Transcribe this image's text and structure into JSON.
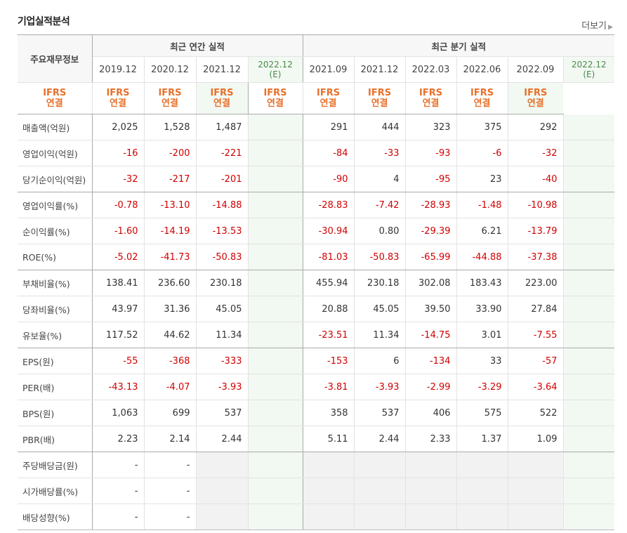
{
  "title": "기업실적분석",
  "more": "더보기",
  "row_label_header": "주요재무정보",
  "annual_header": "최근 연간 실적",
  "quarter_header": "최근 분기 실적",
  "periods": [
    {
      "label": "2019.12",
      "est": false
    },
    {
      "label": "2020.12",
      "est": false
    },
    {
      "label": "2021.12",
      "est": false
    },
    {
      "label": "2022.12",
      "sub": "(E)",
      "est": true
    },
    {
      "label": "2021.09",
      "est": false
    },
    {
      "label": "2021.12",
      "est": false
    },
    {
      "label": "2022.03",
      "est": false
    },
    {
      "label": "2022.06",
      "est": false
    },
    {
      "label": "2022.09",
      "est": false
    },
    {
      "label": "2022.12",
      "sub": "(E)",
      "est": true
    }
  ],
  "ifrs_line1": "IFRS",
  "ifrs_line2": "연결",
  "rows": [
    {
      "label": "매출액(억원)",
      "values": [
        "2,025",
        "1,528",
        "1,487",
        "",
        "291",
        "444",
        "323",
        "375",
        "292",
        ""
      ]
    },
    {
      "label": "영업이익(억원)",
      "values": [
        "-16",
        "-200",
        "-221",
        "",
        "-84",
        "-33",
        "-93",
        "-6",
        "-32",
        ""
      ]
    },
    {
      "label": "당기순이익(억원)",
      "values": [
        "-32",
        "-217",
        "-201",
        "",
        "-90",
        "4",
        "-95",
        "23",
        "-40",
        ""
      ],
      "sep": true
    },
    {
      "label": "영업이익률(%)",
      "values": [
        "-0.78",
        "-13.10",
        "-14.88",
        "",
        "-28.83",
        "-7.42",
        "-28.93",
        "-1.48",
        "-10.98",
        ""
      ]
    },
    {
      "label": "순이익률(%)",
      "values": [
        "-1.60",
        "-14.19",
        "-13.53",
        "",
        "-30.94",
        "0.80",
        "-29.39",
        "6.21",
        "-13.79",
        ""
      ]
    },
    {
      "label": "ROE(%)",
      "values": [
        "-5.02",
        "-41.73",
        "-50.83",
        "",
        "-81.03",
        "-50.83",
        "-65.99",
        "-44.88",
        "-37.38",
        ""
      ],
      "sep": true
    },
    {
      "label": "부채비율(%)",
      "values": [
        "138.41",
        "236.60",
        "230.18",
        "",
        "455.94",
        "230.18",
        "302.08",
        "183.43",
        "223.00",
        ""
      ]
    },
    {
      "label": "당좌비율(%)",
      "values": [
        "43.97",
        "31.36",
        "45.05",
        "",
        "20.88",
        "45.05",
        "39.50",
        "33.90",
        "27.84",
        ""
      ]
    },
    {
      "label": "유보율(%)",
      "values": [
        "117.52",
        "44.62",
        "11.34",
        "",
        "-23.51",
        "11.34",
        "-14.75",
        "3.01",
        "-7.55",
        ""
      ],
      "sep": true
    },
    {
      "label": "EPS(원)",
      "values": [
        "-55",
        "-368",
        "-333",
        "",
        "-153",
        "6",
        "-134",
        "33",
        "-57",
        ""
      ]
    },
    {
      "label": "PER(배)",
      "values": [
        "-43.13",
        "-4.07",
        "-3.93",
        "",
        "-3.81",
        "-3.93",
        "-2.99",
        "-3.29",
        "-3.64",
        ""
      ]
    },
    {
      "label": "BPS(원)",
      "values": [
        "1,063",
        "699",
        "537",
        "",
        "358",
        "537",
        "406",
        "575",
        "522",
        ""
      ]
    },
    {
      "label": "PBR(배)",
      "values": [
        "2.23",
        "2.14",
        "2.44",
        "",
        "5.11",
        "2.44",
        "2.33",
        "1.37",
        "1.09",
        ""
      ],
      "sep": true
    },
    {
      "label": "주당배당금(원)",
      "values": [
        "-",
        "-",
        "",
        "",
        "",
        "",
        "",
        "",
        "",
        ""
      ],
      "grey": true
    },
    {
      "label": "시가배당률(%)",
      "values": [
        "-",
        "-",
        "",
        "",
        "",
        "",
        "",
        "",
        "",
        ""
      ],
      "grey": true
    },
    {
      "label": "배당성향(%)",
      "values": [
        "-",
        "-",
        "",
        "",
        "",
        "",
        "",
        "",
        "",
        ""
      ],
      "grey": true
    }
  ],
  "colors": {
    "negative": "#d00000",
    "ifrs": "#e8702a",
    "estimate_bg": "#f2f8f2",
    "estimate_text": "#4a8a4a"
  }
}
